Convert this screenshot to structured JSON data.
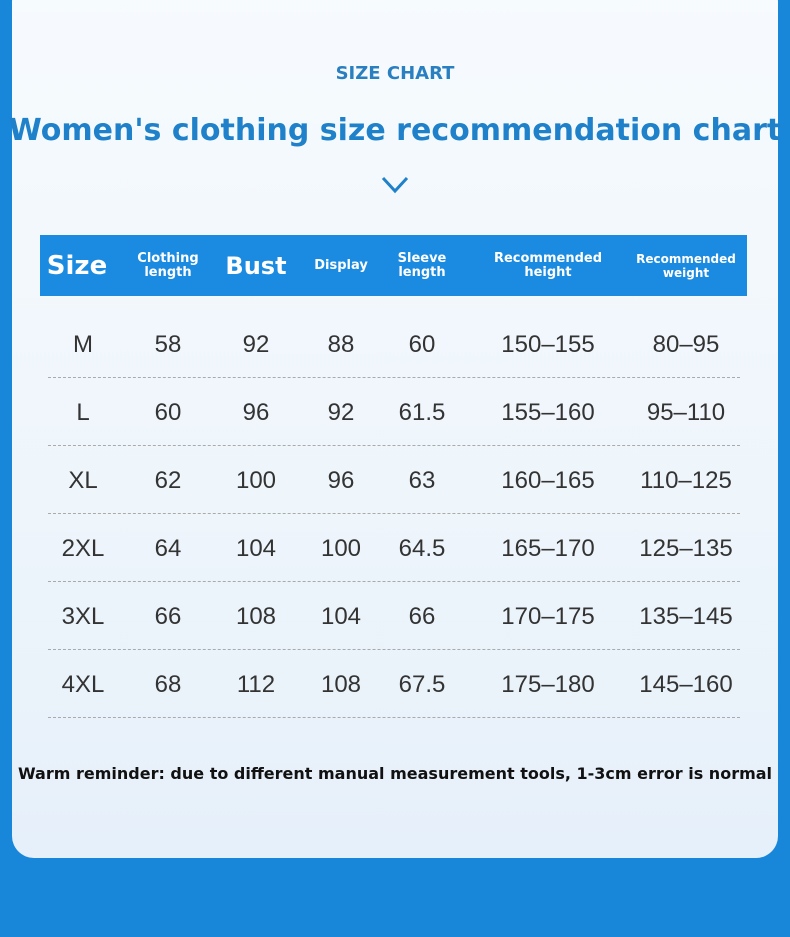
{
  "header": {
    "kicker": "SIZE CHART",
    "title": "Women's clothing size recommendation chart"
  },
  "table": {
    "columns": [
      "Size",
      "Clothing length",
      "Bust",
      "Display",
      "Sleeve length",
      "Recommended height",
      "Recommended weight"
    ],
    "rows": [
      [
        "M",
        "58",
        "92",
        "88",
        "60",
        "150–155",
        "80–95"
      ],
      [
        "L",
        "60",
        "96",
        "92",
        "61.5",
        "155–160",
        "95–110"
      ],
      [
        "XL",
        "62",
        "100",
        "96",
        "63",
        "160–165",
        "110–125"
      ],
      [
        "2XL",
        "64",
        "104",
        "100",
        "64.5",
        "165–170",
        "125–135"
      ],
      [
        "3XL",
        "66",
        "108",
        "104",
        "66",
        "170–175",
        "135–145"
      ],
      [
        "4XL",
        "68",
        "112",
        "108",
        "67.5",
        "175–180",
        "145–160"
      ]
    ]
  },
  "note": "Warm reminder: due to different manual measurement tools, 1-3cm error is normal"
}
